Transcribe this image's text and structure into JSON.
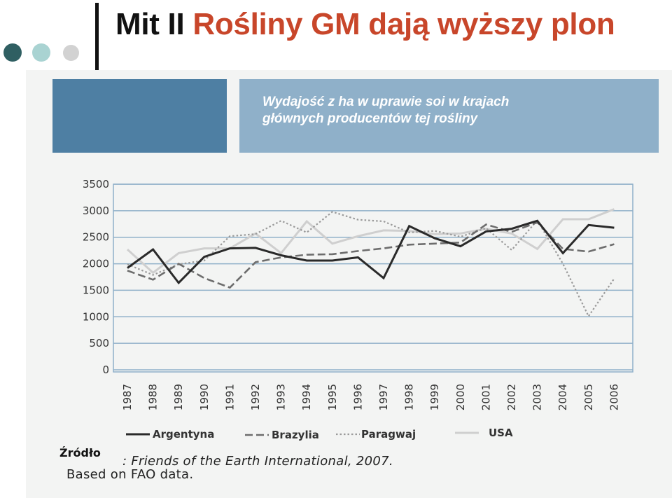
{
  "slide": {
    "title_prefix": "Mit II",
    "title_main": "Rośliny GM dają wyższy plon"
  },
  "header": {
    "subtitle_line1": "Wydajość z ha w uprawie soi w krajach",
    "subtitle_line2": "głównych producentów tej rośliny"
  },
  "source": {
    "label": "Źródło",
    "citation": ": Friends of the Earth International, 2007.",
    "note": "Based on FAO data."
  },
  "colors": {
    "title_accent": "#c8462a",
    "dot1": "#2f5f62",
    "dot2": "#a9d3d2",
    "dot3": "#d2d2d2",
    "header_left": "#4e7fa3",
    "header_right": "#8fb0c9",
    "grid": "#8fb0c9"
  },
  "chart_data": {
    "type": "line",
    "title": "Wydajość z ha w uprawie soi w krajach głównych producentów tej rośliny",
    "categories": [
      "1987",
      "1988",
      "1989",
      "1990",
      "1991",
      "1992",
      "1993",
      "1994",
      "1995",
      "1996",
      "1997",
      "1998",
      "1999",
      "2000",
      "2001",
      "2002",
      "2003",
      "2004",
      "2005",
      "2006"
    ],
    "ylim": [
      0,
      3500
    ],
    "yticks": [
      0,
      500,
      1000,
      1500,
      2000,
      2500,
      3000,
      3500
    ],
    "grid": true,
    "legend_position": "bottom",
    "series": [
      {
        "name": "Argentyna",
        "style": "solid",
        "color": "#2a2a2a",
        "values": [
          1920,
          2270,
          1640,
          2130,
          2290,
          2300,
          2160,
          2060,
          2060,
          2120,
          1730,
          2710,
          2480,
          2330,
          2610,
          2660,
          2810,
          2200,
          2730,
          2680
        ]
      },
      {
        "name": "Brazylia",
        "style": "dash",
        "color": "#6d6d6d",
        "values": [
          1870,
          1700,
          2000,
          1730,
          1550,
          2030,
          2120,
          2170,
          2180,
          2240,
          2290,
          2360,
          2380,
          2400,
          2740,
          2600,
          2780,
          2280,
          2230,
          2370
        ]
      },
      {
        "name": "Paragwaj",
        "style": "dot",
        "color": "#9a9a9a",
        "values": [
          1990,
          1790,
          1990,
          2060,
          2520,
          2560,
          2810,
          2590,
          2980,
          2830,
          2800,
          2590,
          2620,
          2510,
          2670,
          2260,
          2820,
          2000,
          1010,
          1720
        ]
      },
      {
        "name": "USA",
        "style": "solid",
        "color": "#cfcfcf",
        "values": [
          2270,
          1830,
          2200,
          2290,
          2290,
          2570,
          2200,
          2800,
          2380,
          2520,
          2630,
          2620,
          2560,
          2570,
          2660,
          2570,
          2280,
          2840,
          2840,
          3030
        ]
      }
    ]
  }
}
